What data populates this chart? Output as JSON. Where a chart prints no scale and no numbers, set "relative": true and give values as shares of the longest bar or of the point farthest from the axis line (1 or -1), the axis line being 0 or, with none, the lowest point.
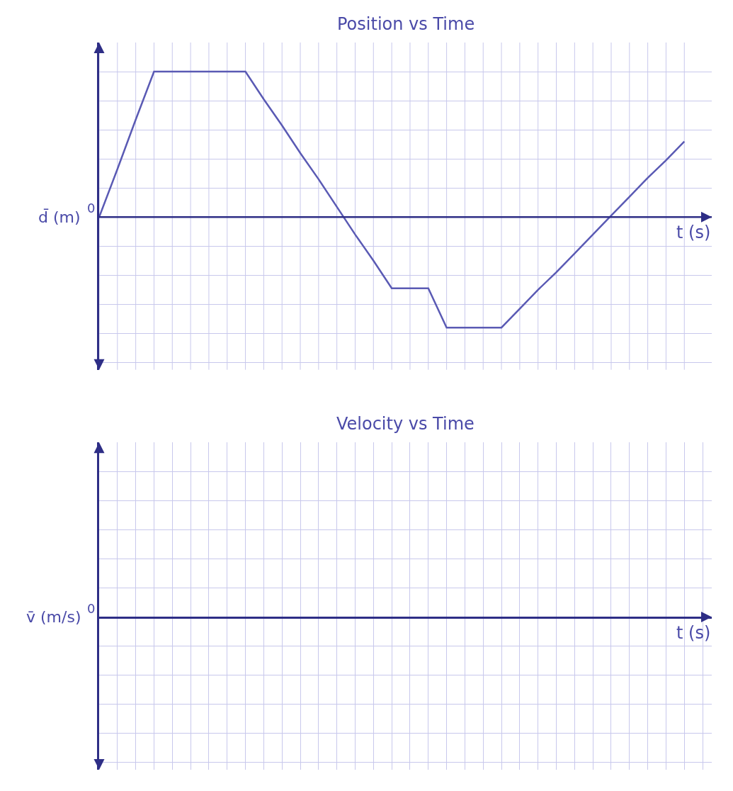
{
  "chart_data": [
    {
      "type": "line",
      "title": "Position vs Time",
      "xlabel": "t (s)",
      "ylabel": "d̄ (m)",
      "relative": true,
      "grid": true,
      "marker": "none",
      "line_style": "solid",
      "color": "#5a5ab4",
      "annotations": [
        "0"
      ],
      "ref_lines": [
        {
          "axis": "y",
          "value": 0
        }
      ],
      "categories": [
        null,
        null,
        null,
        null,
        null,
        null,
        null,
        null,
        null,
        null,
        null,
        null,
        null,
        null,
        null,
        null,
        null,
        null,
        null,
        null,
        null,
        null,
        null,
        null,
        null,
        null,
        null,
        null,
        null,
        null,
        null,
        null,
        null
      ],
      "values": [
        0,
        0.33,
        0.67,
        1,
        1,
        1,
        1,
        1,
        1,
        0.81,
        0.63,
        0.44,
        0.26,
        0.07,
        -0.12,
        -0.3,
        -0.49,
        -0.49,
        -0.49,
        -0.76,
        -0.76,
        -0.76,
        -0.76,
        -0.63,
        -0.5,
        -0.38,
        -0.25,
        -0.12,
        0.01,
        0.14,
        0.27,
        0.39,
        0.52
      ]
    },
    {
      "type": "other",
      "title": "Velocity vs Time",
      "xlabel": "t (s)",
      "ylabel": "v̄ (m/s)",
      "annotations": [
        "0"
      ]
    }
  ]
}
